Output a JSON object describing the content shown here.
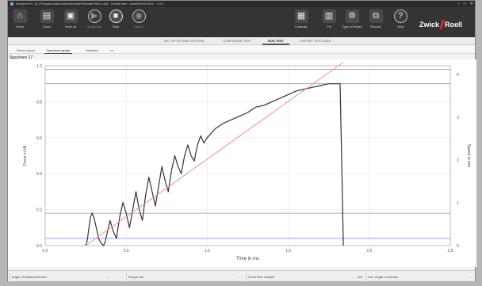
{
  "window": {
    "title": "testXpert III - [C:\\ProgramData\\Zwick\\testXpert\\Results\\Test1.zs2] - Tensile test - Zwick/Roell Z010 - 1.0.0"
  },
  "toolbar": {
    "items": [
      {
        "label": "Home",
        "icon": "home-icon",
        "glyph": "⌂"
      },
      {
        "label": "Open",
        "icon": "open-icon",
        "glyph": "▤"
      },
      {
        "label": "Save as",
        "icon": "save-icon",
        "glyph": "▣"
      },
      {
        "label": "Single test",
        "icon": "play-icon",
        "glyph": "▶"
      },
      {
        "label": "Stop",
        "icon": "stop-icon",
        "glyph": "■"
      },
      {
        "label": "Series",
        "icon": "series-icon",
        "glyph": "◉"
      },
      {
        "label": "Evaluate",
        "icon": "evaluate-icon",
        "glyph": "▦"
      },
      {
        "label": "Fill",
        "icon": "fill-icon",
        "glyph": "▥"
      },
      {
        "label": "Type of fixture",
        "icon": "fixture-icon",
        "glyph": "⚙"
      },
      {
        "label": "Record",
        "icon": "record-icon",
        "glyph": "⧉"
      },
      {
        "label": "Help",
        "icon": "help-icon",
        "glyph": "?"
      }
    ],
    "logo_left": "Zwick",
    "logo_right": "Roell"
  },
  "steps": [
    {
      "label": "SET UP TESTING SYSTEM",
      "active": false
    },
    {
      "label": "CONFIGURE TEST",
      "active": false
    },
    {
      "label": "RUN TEST",
      "active": true
    },
    {
      "label": "EXPORT TEST DATA",
      "active": false
    }
  ],
  "tabs": [
    {
      "label": "Series layout",
      "active": false
    },
    {
      "label": "Specimen graph",
      "active": true
    },
    {
      "label": "Statistics",
      "active": false
    },
    {
      "label": "•••",
      "active": false
    }
  ],
  "specimen_label": "Specimen 17",
  "chart_data": {
    "type": "line",
    "xlabel": "Time in ms",
    "ylabel": "Force in kN",
    "y2label": "Speed in mm",
    "xlim": [
      0.0,
      2.5
    ],
    "ylim": [
      0.0,
      1.0
    ],
    "y2lim": [
      0,
      4.2
    ],
    "xticks": [
      "0.0",
      "0.5",
      "1.0",
      "1.5",
      "2.0",
      "2.5"
    ],
    "yticks": [
      "0.0",
      "0.2",
      "0.4",
      "0.6",
      "0.8",
      "1.0"
    ],
    "y2ticks": [
      "0",
      "1",
      "2",
      "3",
      "4"
    ],
    "grid": true,
    "series": [
      {
        "color": "#333333",
        "x": [
          0.25,
          0.26,
          0.27,
          0.28,
          0.29,
          0.3,
          0.31,
          0.32,
          0.33,
          0.34,
          0.35,
          0.36,
          0.37,
          0.38,
          0.39,
          0.4,
          0.42,
          0.44,
          0.46,
          0.48,
          0.5,
          0.52,
          0.54,
          0.56,
          0.58,
          0.6,
          0.62,
          0.64,
          0.66,
          0.68,
          0.7,
          0.72,
          0.74,
          0.76,
          0.78,
          0.8,
          0.82,
          0.84,
          0.86,
          0.88,
          0.9,
          0.92,
          0.94,
          0.96,
          0.98,
          1.0,
          1.05,
          1.1,
          1.15,
          1.2,
          1.25,
          1.3,
          1.35,
          1.4,
          1.45,
          1.5,
          1.55,
          1.6,
          1.65,
          1.7,
          1.75,
          1.8,
          1.82,
          1.83,
          1.84
        ],
        "values": [
          0.0,
          0.03,
          0.1,
          0.16,
          0.18,
          0.16,
          0.12,
          0.08,
          0.04,
          0.02,
          0.01,
          0.0,
          0.02,
          0.06,
          0.1,
          0.14,
          0.08,
          0.04,
          0.16,
          0.24,
          0.18,
          0.1,
          0.2,
          0.3,
          0.2,
          0.14,
          0.28,
          0.38,
          0.3,
          0.22,
          0.33,
          0.44,
          0.36,
          0.3,
          0.42,
          0.5,
          0.44,
          0.4,
          0.5,
          0.56,
          0.5,
          0.47,
          0.56,
          0.61,
          0.57,
          0.6,
          0.65,
          0.68,
          0.7,
          0.72,
          0.74,
          0.77,
          0.78,
          0.8,
          0.82,
          0.84,
          0.86,
          0.87,
          0.88,
          0.89,
          0.9,
          0.9,
          0.9,
          0.45,
          0.0
        ]
      },
      {
        "color": "#ef8f8f",
        "x": [
          0.25,
          1.84
        ],
        "values": [
          0.0,
          1.02
        ]
      }
    ],
    "limits": [
      {
        "color": "#8f8fef",
        "value": 0.9
      },
      {
        "color": "#8f8fef",
        "value": 0.18
      },
      {
        "color": "#8f8fef",
        "value": 0.04
      },
      {
        "color": "#8f8fef",
        "value": 0.98
      }
    ]
  },
  "statusbar": {
    "fields": [
      {
        "label": "Angle of shaded stencler",
        "value": "- - -"
      },
      {
        "label": "Range low",
        "value": "- - -"
      },
      {
        "label": "Force fiber shaped",
        "value": "- - - kN"
      },
      {
        "label": "Cur. length of release",
        "value": "- - -"
      }
    ]
  }
}
